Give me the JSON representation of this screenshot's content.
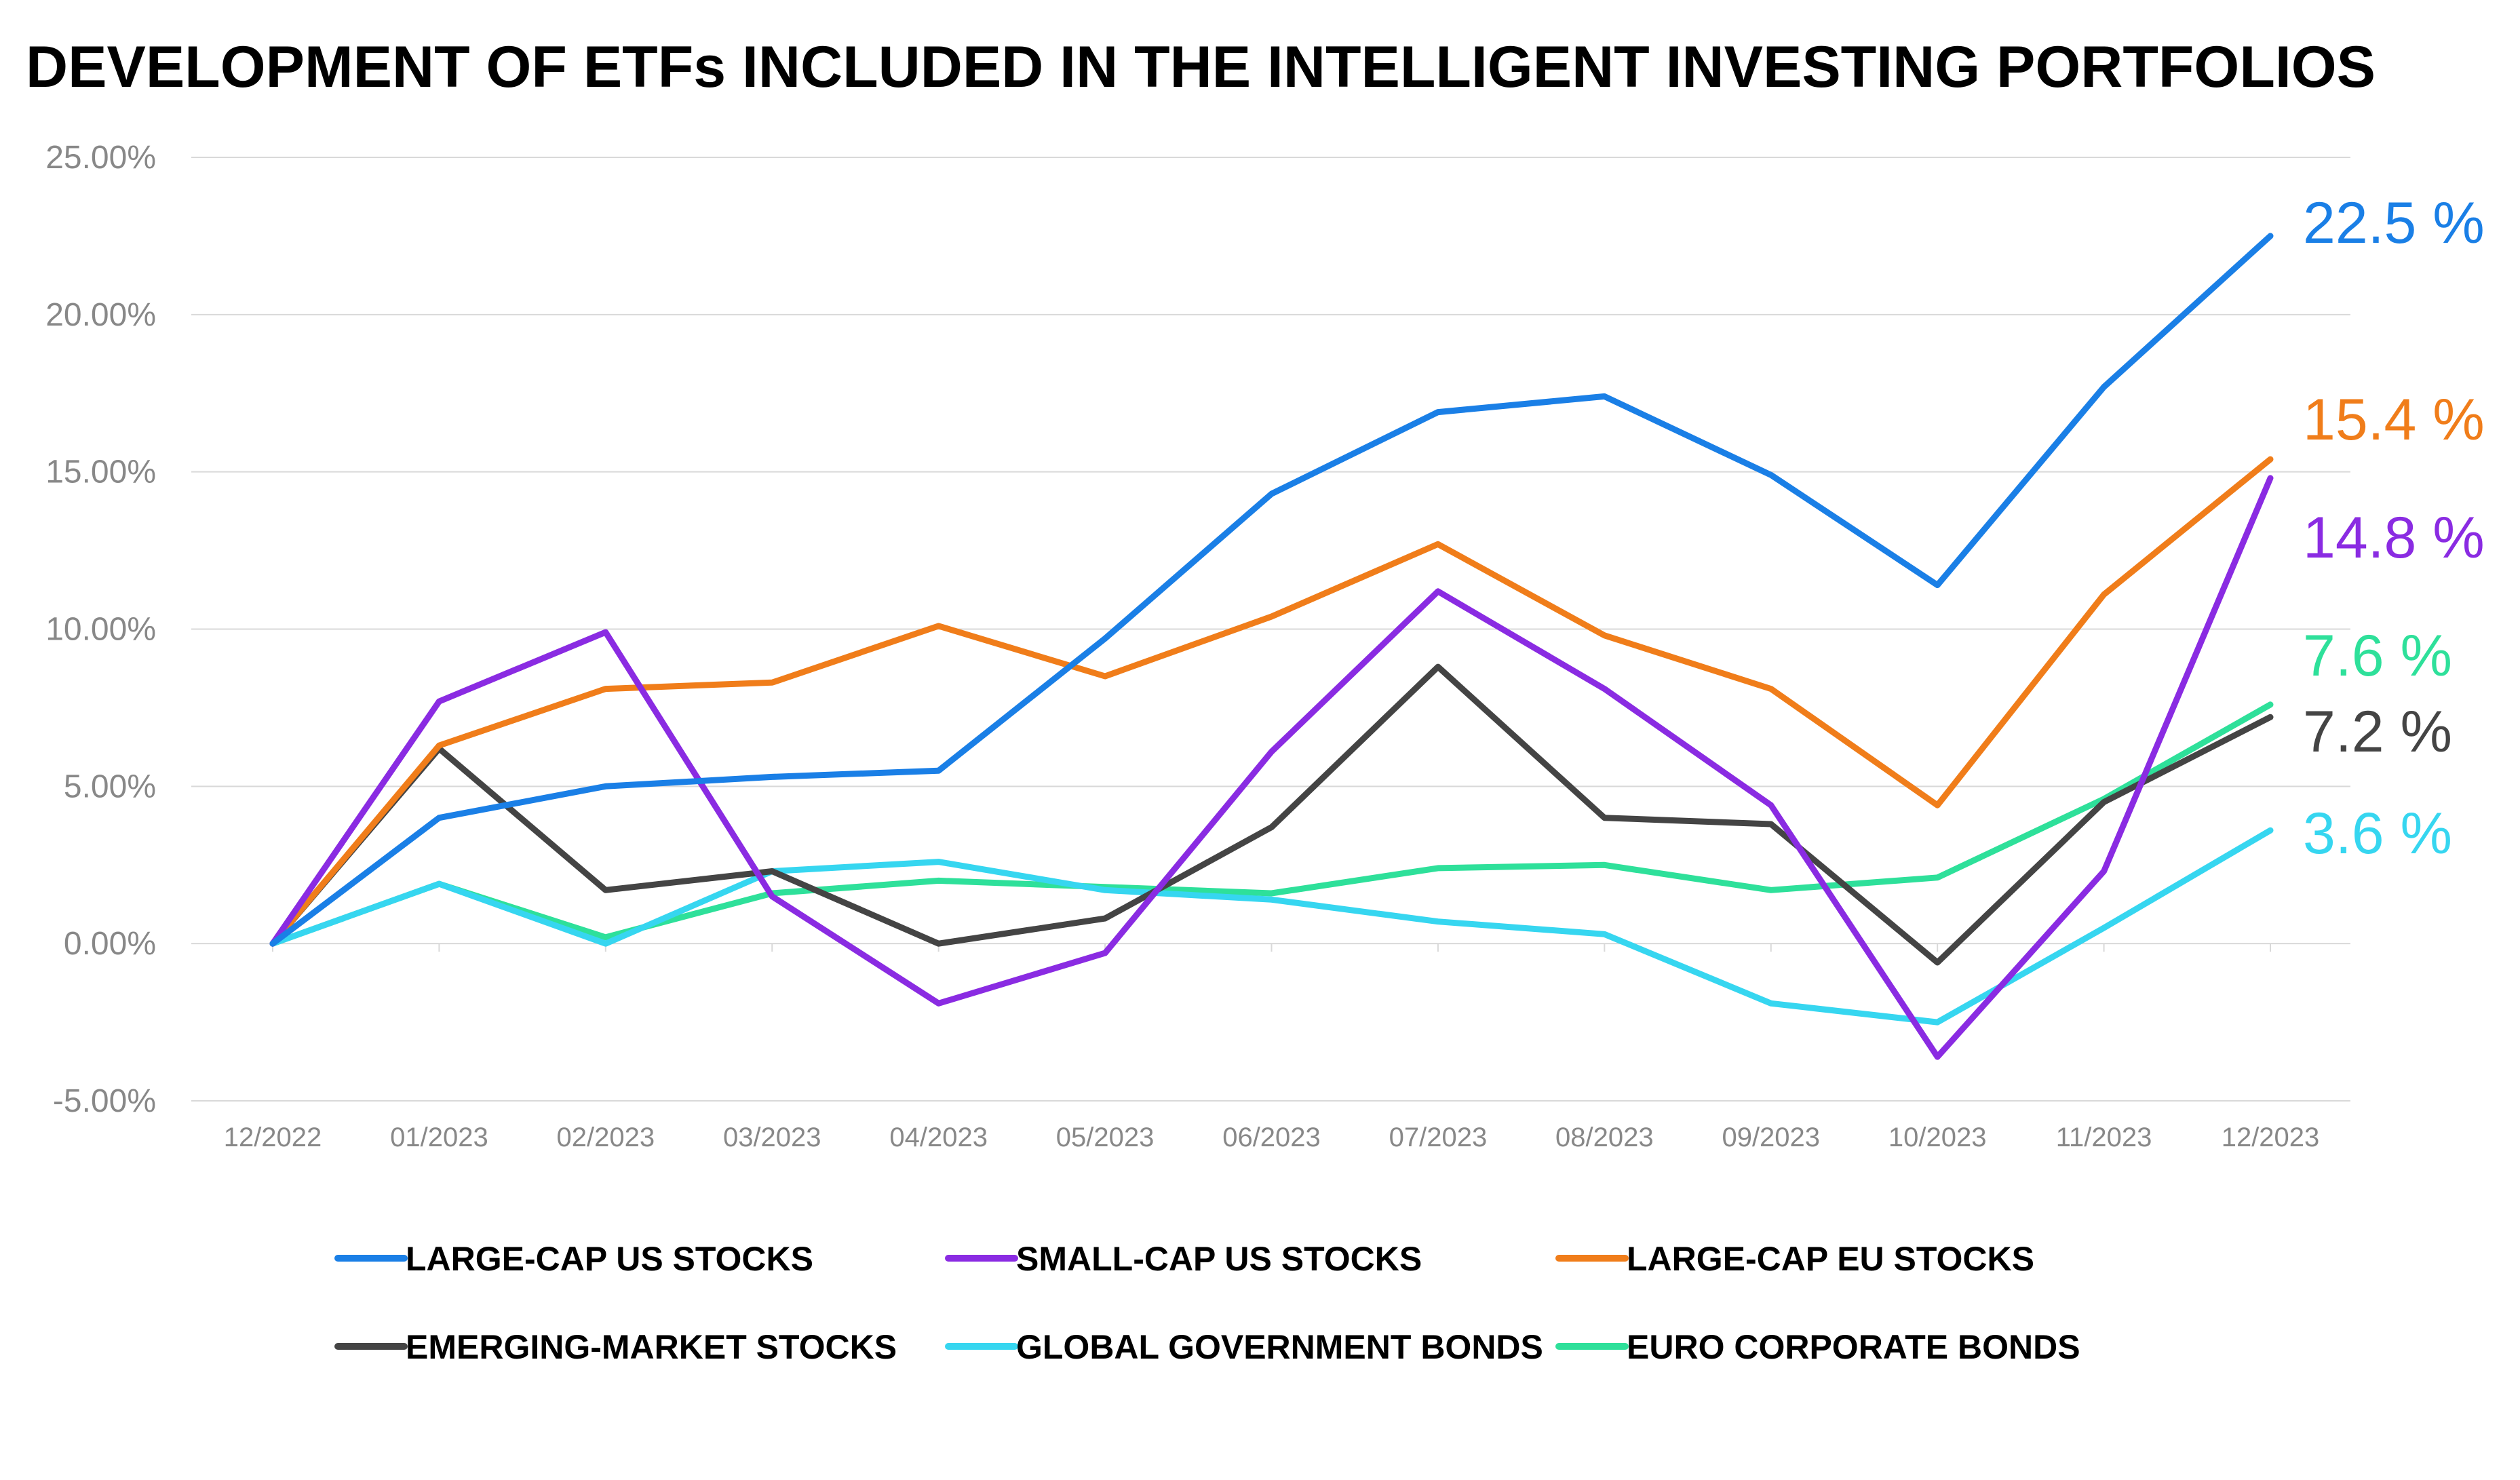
{
  "chart_data": {
    "type": "line",
    "title": "DEVELOPMENT OF ETFs INCLUDED IN THE INTELLIGENT INVESTING PORTFOLIOS",
    "categories": [
      "12/2022",
      "01/2023",
      "02/2023",
      "03/2023",
      "04/2023",
      "05/2023",
      "06/2023",
      "07/2023",
      "08/2023",
      "09/2023",
      "10/2023",
      "11/2023",
      "12/2023"
    ],
    "yticks": [
      "25.00%",
      "20.00%",
      "15.00%",
      "10.00%",
      "5.00%",
      "0.00%",
      "-5.00%"
    ],
    "ylim": [
      -5,
      25
    ],
    "grid": true,
    "legend_position": "bottom",
    "series": [
      {
        "name": "LARGE-CAP US STOCKS",
        "color": "#1a7fe6",
        "end_label": "22.5 %",
        "values": [
          0,
          4.0,
          5.0,
          5.3,
          5.5,
          9.7,
          14.3,
          16.9,
          17.4,
          14.9,
          11.4,
          17.7,
          22.5
        ]
      },
      {
        "name": "SMALL-CAP US STOCKS",
        "color": "#8a2be2",
        "end_label": "14.8 %",
        "values": [
          0,
          7.7,
          9.9,
          1.5,
          -1.9,
          -0.3,
          6.1,
          11.2,
          8.1,
          4.4,
          -3.6,
          2.3,
          14.8
        ]
      },
      {
        "name": "LARGE-CAP EU STOCKS",
        "color": "#f07d1a",
        "end_label": "15.4 %",
        "values": [
          0,
          6.3,
          8.1,
          8.3,
          10.1,
          8.5,
          10.4,
          12.7,
          9.8,
          8.1,
          4.4,
          11.1,
          15.4
        ]
      },
      {
        "name": "EMERGING-MARKET STOCKS",
        "color": "#444444",
        "end_label": "7.2 %",
        "values": [
          0,
          6.2,
          1.7,
          2.3,
          0.0,
          0.8,
          3.7,
          8.8,
          4.0,
          3.8,
          -0.6,
          4.5,
          7.2
        ]
      },
      {
        "name": "GLOBAL GOVERNMENT BONDS",
        "color": "#36d6f0",
        "end_label": "3.6 %",
        "values": [
          0,
          1.9,
          0.0,
          2.3,
          2.6,
          1.7,
          1.4,
          0.7,
          0.3,
          -1.9,
          -2.5,
          0.5,
          3.6
        ]
      },
      {
        "name": "EURO CORPORATE BONDS",
        "color": "#2ee09a",
        "end_label": "7.6 %",
        "values": [
          0,
          1.9,
          0.2,
          1.6,
          2.0,
          1.8,
          1.6,
          2.4,
          2.5,
          1.7,
          2.1,
          4.6,
          7.6
        ]
      }
    ]
  }
}
